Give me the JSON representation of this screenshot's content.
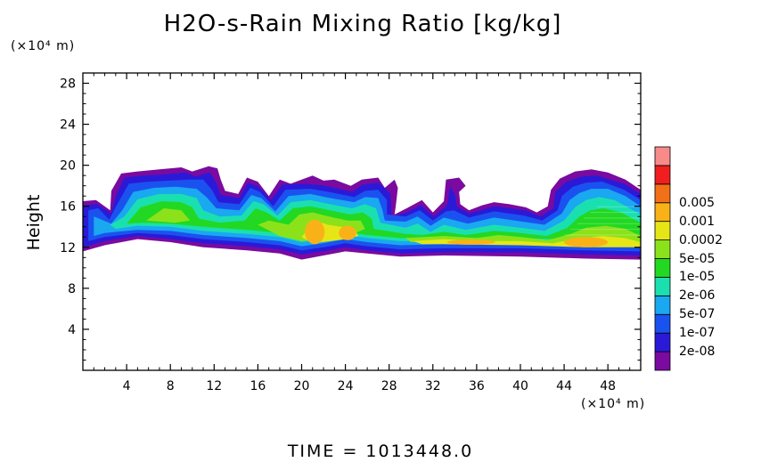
{
  "title": "H2O-s-Rain Mixing Ratio [kg/kg]",
  "y_unit": "(×10⁴ m)",
  "x_unit": "(×10⁴ m)",
  "footer": "TIME  =  1013448.0",
  "chart_data": {
    "type": "heatmap",
    "title": "H2O-s-Rain Mixing Ratio [kg/kg]",
    "xlabel": "",
    "ylabel": "Height",
    "xlim": [
      0,
      51
    ],
    "ylim": [
      0,
      29
    ],
    "x_ticks": [
      4,
      8,
      12,
      16,
      20,
      24,
      28,
      32,
      36,
      40,
      44,
      48
    ],
    "y_ticks": [
      4,
      8,
      12,
      16,
      20,
      24,
      28
    ],
    "colorbar": {
      "labels": [
        "0.005",
        "0.001",
        "0.0002",
        "5e-05",
        "1e-05",
        "2e-06",
        "5e-07",
        "1e-07",
        "2e-08"
      ],
      "colors": [
        "#7a0aa0",
        "#2a1ad8",
        "#1a52f0",
        "#1aa8f0",
        "#1ae0b0",
        "#22d822",
        "#8ce21a",
        "#e6e616",
        "#f8b218",
        "#f27018",
        "#f01e1e",
        "#f88a8a"
      ]
    }
  }
}
